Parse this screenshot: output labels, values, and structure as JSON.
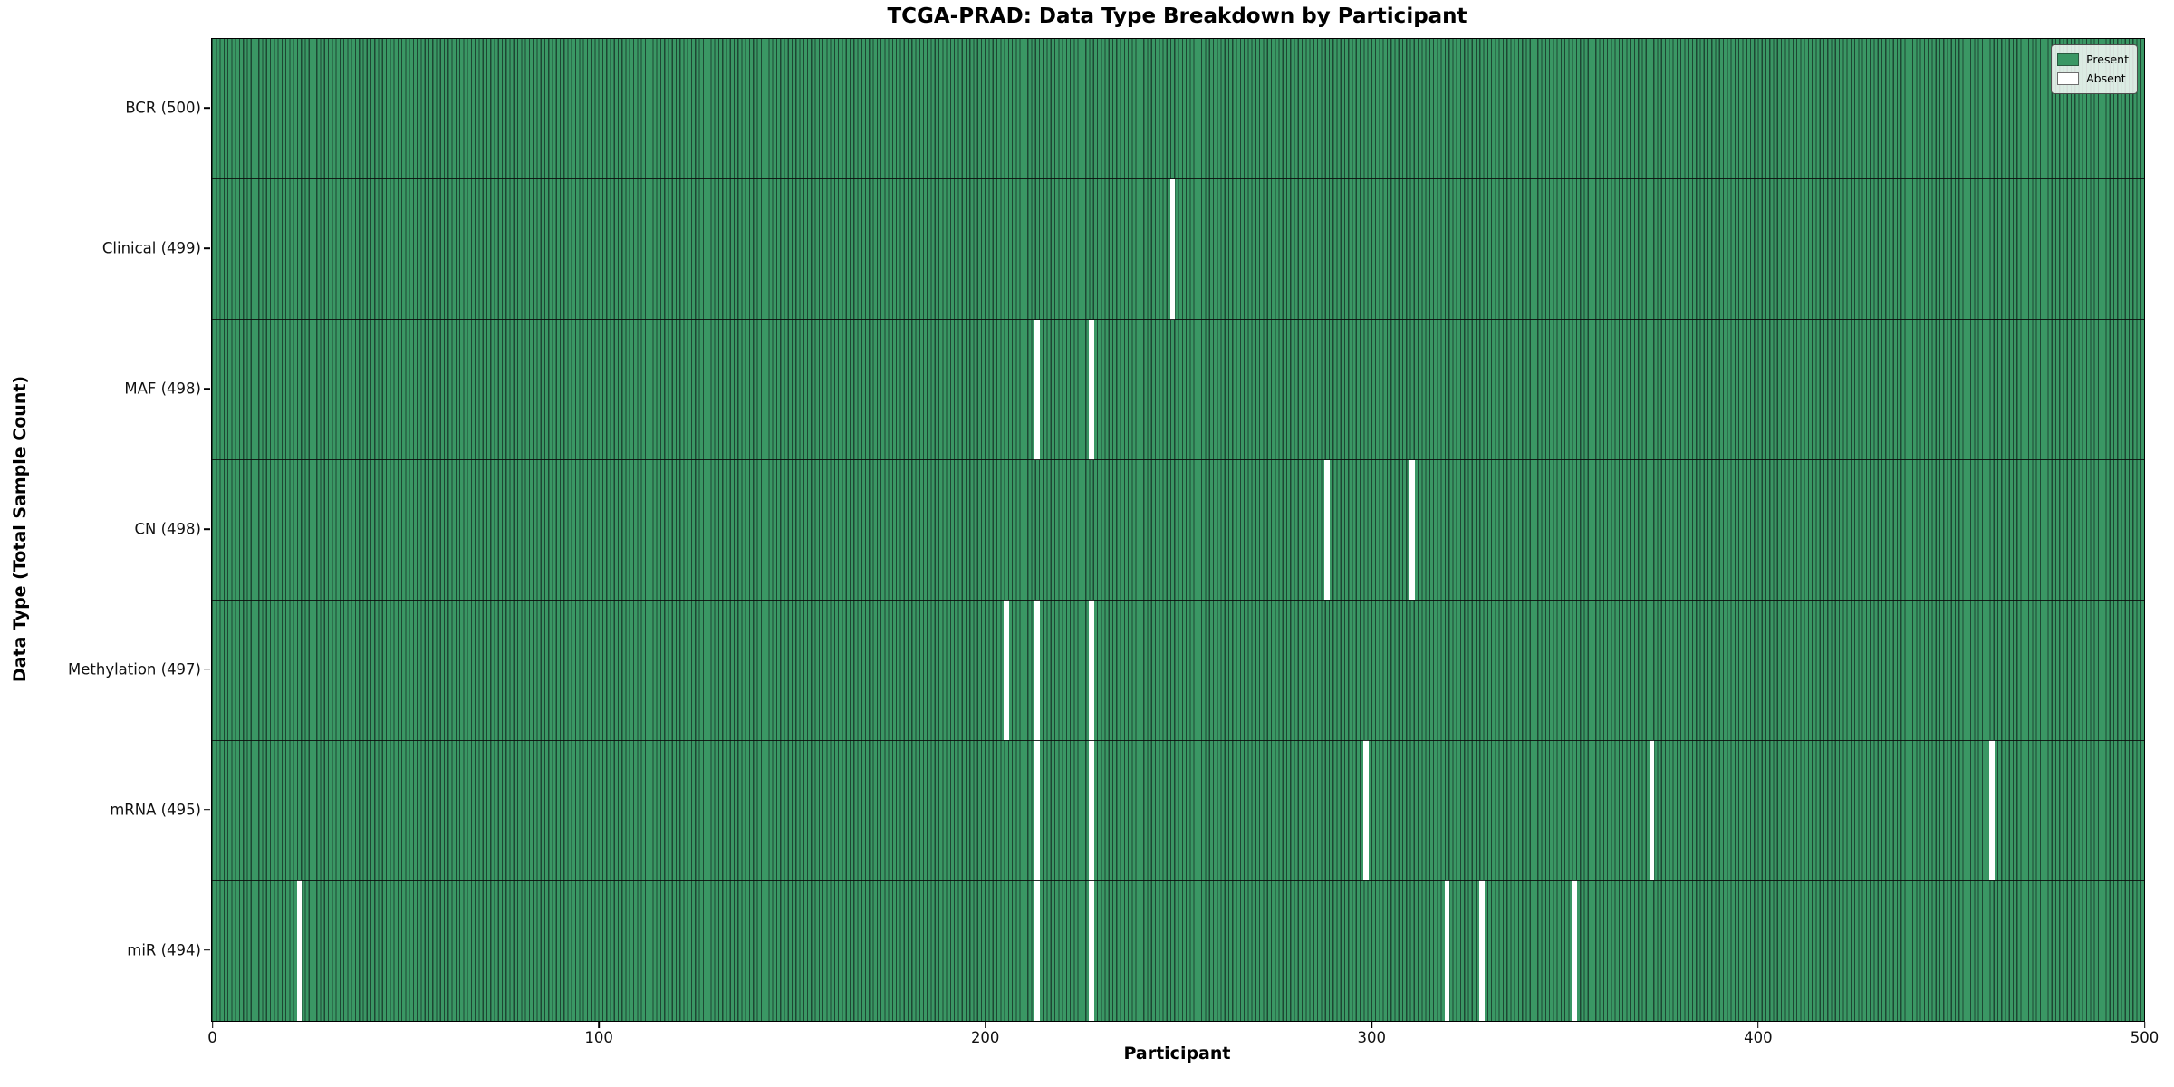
{
  "title": "TCGA-PRAD: Data Type Breakdown by Participant",
  "xlabel": "Participant",
  "ylabel": "Data Type (Total Sample Count)",
  "legend": {
    "present_label": "Present",
    "absent_label": "Absent"
  },
  "colors": {
    "present_fill": "#3a9764",
    "bar_edge": "#1d4733",
    "absent_fill": "#ffffff",
    "separator": "#0a0a0a",
    "legend_bg": "rgba(255,255,255,0.82)"
  },
  "chart_data": {
    "type": "heatmap",
    "title": "TCGA-PRAD: Data Type Breakdown by Participant",
    "xlabel": "Participant",
    "ylabel": "Data Type (Total Sample Count)",
    "x_range": [
      0,
      500
    ],
    "x_ticks": [
      0,
      100,
      200,
      300,
      400,
      500
    ],
    "n_participants": 500,
    "grid": false,
    "legend_entries": [
      "Present",
      "Absent"
    ],
    "legend_position": "upper right",
    "rows": [
      {
        "label": "BCR (500)",
        "name": "BCR",
        "total": 500,
        "absent_participants": []
      },
      {
        "label": "Clinical (499)",
        "name": "Clinical",
        "total": 499,
        "absent_participants": [
          248
        ]
      },
      {
        "label": "MAF (498)",
        "name": "MAF",
        "total": 498,
        "absent_participants": [
          213,
          227
        ]
      },
      {
        "label": "CN (498)",
        "name": "CN",
        "total": 498,
        "absent_participants": [
          288,
          310
        ]
      },
      {
        "label": "Methylation (497)",
        "name": "Methylation",
        "total": 497,
        "absent_participants": [
          205,
          213,
          227
        ]
      },
      {
        "label": "mRNA (495)",
        "name": "mRNA",
        "total": 495,
        "absent_participants": [
          213,
          227,
          298,
          372,
          460
        ]
      },
      {
        "label": "miR (494)",
        "name": "miR",
        "total": 494,
        "absent_participants": [
          22,
          213,
          227,
          319,
          328,
          352
        ]
      }
    ]
  }
}
